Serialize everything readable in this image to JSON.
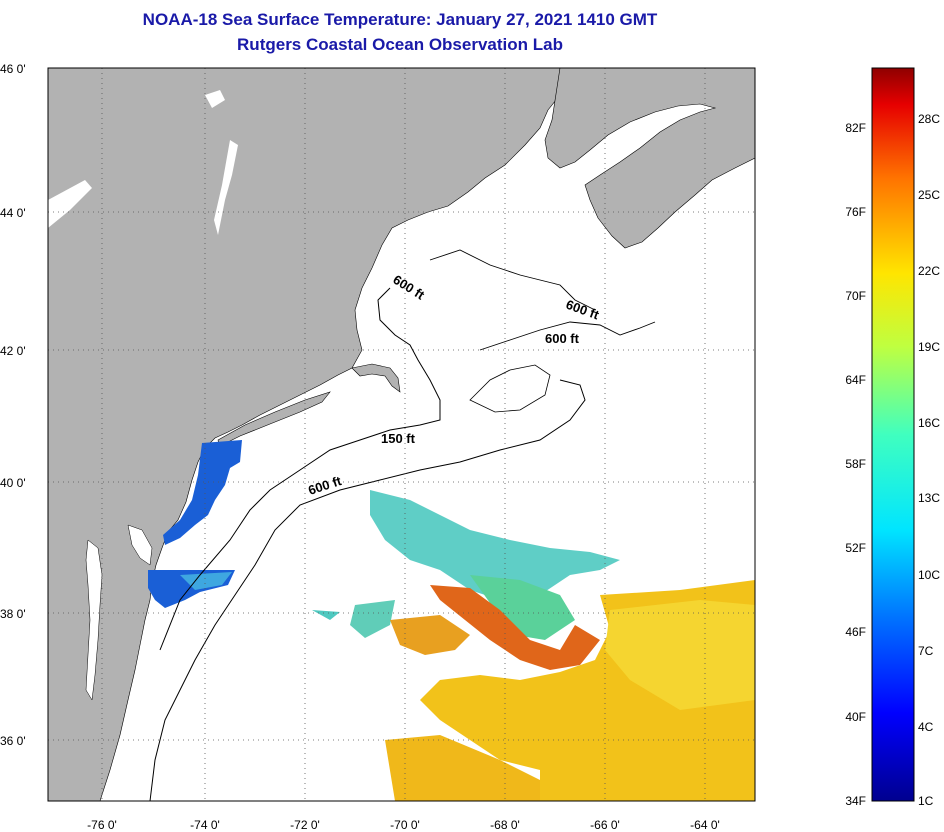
{
  "title": {
    "line1": "NOAA-18 Sea Surface Temperature:  January 27, 2021 1410 GMT",
    "line2": "Rutgers Coastal Ocean Observation Lab"
  },
  "axes": {
    "lat_labels": [
      "36 0'",
      "38 0'",
      "40 0'",
      "42 0'",
      "44 0'",
      "46 0'"
    ],
    "lon_labels": [
      "-76 0'",
      "-74 0'",
      "-72 0'",
      "-70 0'",
      "-68 0'",
      "-66 0'",
      "-64 0'"
    ]
  },
  "contours": {
    "c1": "600 ft",
    "c2": "600 ft",
    "c3": "600 ft",
    "c4": "150 ft",
    "c5": "600 ft"
  },
  "colorbar": {
    "fahrenheit": [
      "34F",
      "40F",
      "46F",
      "52F",
      "58F",
      "64F",
      "70F",
      "76F",
      "82F"
    ],
    "celsius": [
      "1C",
      "4C",
      "7C",
      "10C",
      "13C",
      "16C",
      "19C",
      "22C",
      "25C",
      "28C"
    ]
  },
  "colors": {
    "land": "#b2b2b2",
    "ocean": "#ffffff",
    "cold": "#1a5fd6",
    "cool": "#4ec9c0",
    "warm": "#f2c21a",
    "hot": "#e0661a"
  }
}
